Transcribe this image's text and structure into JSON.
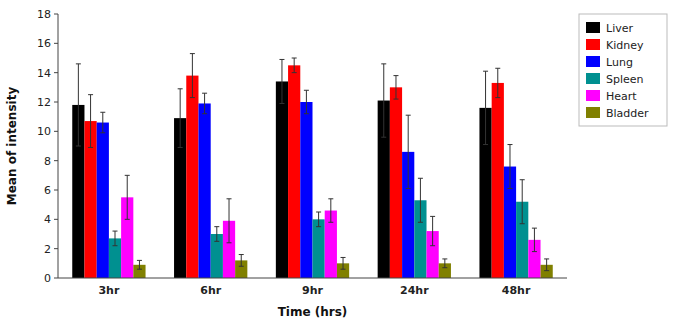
{
  "chart_data": {
    "type": "bar",
    "xlabel": "Time (hrs)",
    "ylabel": "Mean of intensity",
    "categories": [
      "3hr",
      "6hr",
      "9hr",
      "24hr",
      "48hr"
    ],
    "series": [
      {
        "name": "Liver",
        "color": "black",
        "values": [
          11.8,
          10.9,
          13.4,
          12.1,
          11.6
        ],
        "errors": [
          2.8,
          2.0,
          1.5,
          2.5,
          2.5
        ]
      },
      {
        "name": "Kidney",
        "color": "#ff0000",
        "values": [
          10.7,
          13.8,
          14.5,
          13.0,
          13.3
        ],
        "errors": [
          1.8,
          1.5,
          0.5,
          0.8,
          1.0
        ]
      },
      {
        "name": "Lung",
        "color": "#0000ff",
        "values": [
          10.6,
          11.9,
          12.0,
          8.6,
          7.6
        ],
        "errors": [
          0.7,
          0.7,
          0.8,
          2.5,
          1.5
        ]
      },
      {
        "name": "Spleen",
        "color": "#009090",
        "values": [
          2.7,
          3.0,
          4.0,
          5.3,
          5.2
        ],
        "errors": [
          0.5,
          0.5,
          0.5,
          1.5,
          1.5
        ]
      },
      {
        "name": "Heart",
        "color": "#ff00ff",
        "values": [
          5.5,
          3.9,
          4.6,
          3.2,
          2.6
        ],
        "errors": [
          1.5,
          1.5,
          0.8,
          1.0,
          0.8
        ]
      },
      {
        "name": "Bladder",
        "color": "#808000",
        "values": [
          0.9,
          1.2,
          1.0,
          1.0,
          0.9
        ],
        "errors": [
          0.3,
          0.4,
          0.4,
          0.3,
          0.4
        ]
      }
    ],
    "ylim": [
      0,
      18
    ],
    "yticks": [
      0,
      2,
      4,
      6,
      8,
      10,
      12,
      14,
      16,
      18
    ],
    "grid": false,
    "legend": "upper right"
  }
}
